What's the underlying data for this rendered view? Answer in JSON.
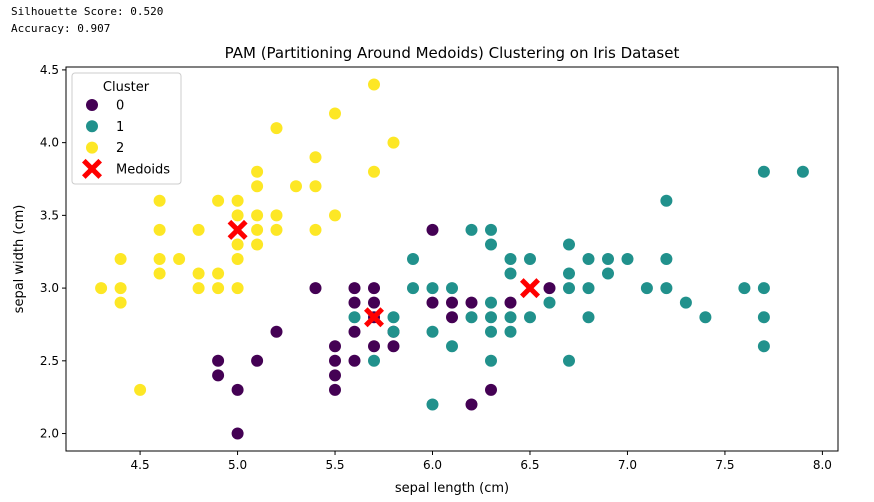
{
  "stats": {
    "silhouette": "Silhouette Score: 0.520",
    "accuracy": "Accuracy: 0.907"
  },
  "chart_data": {
    "type": "scatter",
    "title": "PAM (Partitioning Around Medoids) Clustering on Iris Dataset",
    "xlabel": "sepal length (cm)",
    "ylabel": "sepal width (cm)",
    "xlim": [
      4.12,
      8.08
    ],
    "ylim": [
      1.88,
      4.52
    ],
    "xticks": [
      4.5,
      5.0,
      5.5,
      6.0,
      6.5,
      7.0,
      7.5,
      8.0
    ],
    "xtick_labels": [
      "4.5",
      "5.0",
      "5.5",
      "6.0",
      "6.5",
      "7.0",
      "7.5",
      "8.0"
    ],
    "yticks": [
      2.0,
      2.5,
      3.0,
      3.5,
      4.0,
      4.5
    ],
    "ytick_labels": [
      "2.0",
      "2.5",
      "3.0",
      "3.5",
      "4.0",
      "4.5"
    ],
    "grid": false,
    "legend": {
      "title": "Cluster",
      "position": "upper-left",
      "entries": [
        {
          "label": "0",
          "color": "#440154",
          "marker": "circle"
        },
        {
          "label": "1",
          "color": "#21918c",
          "marker": "circle"
        },
        {
          "label": "2",
          "color": "#fde725",
          "marker": "circle"
        },
        {
          "label": "Medoids",
          "color": "#ff0000",
          "marker": "x"
        }
      ]
    },
    "series": [
      {
        "name": "0",
        "color": "#440154",
        "points": [
          [
            4.9,
            2.5
          ],
          [
            4.9,
            2.4
          ],
          [
            5.0,
            2.3
          ],
          [
            5.0,
            2.0
          ],
          [
            5.1,
            2.5
          ],
          [
            5.2,
            2.7
          ],
          [
            5.4,
            3.0
          ],
          [
            5.5,
            2.6
          ],
          [
            5.5,
            2.5
          ],
          [
            5.5,
            2.4
          ],
          [
            5.5,
            2.3
          ],
          [
            5.6,
            3.0
          ],
          [
            5.6,
            2.9
          ],
          [
            5.6,
            2.7
          ],
          [
            5.6,
            2.5
          ],
          [
            5.7,
            3.0
          ],
          [
            5.7,
            2.9
          ],
          [
            5.7,
            2.8
          ],
          [
            5.7,
            2.6
          ],
          [
            5.8,
            2.7
          ],
          [
            5.8,
            2.6
          ],
          [
            6.0,
            3.4
          ],
          [
            6.0,
            2.9
          ],
          [
            6.1,
            2.9
          ],
          [
            6.1,
            2.8
          ],
          [
            6.2,
            2.9
          ],
          [
            6.2,
            2.2
          ],
          [
            6.3,
            2.3
          ],
          [
            6.4,
            2.9
          ],
          [
            6.6,
            3.0
          ]
        ]
      },
      {
        "name": "1",
        "color": "#21918c",
        "points": [
          [
            5.6,
            2.8
          ],
          [
            5.7,
            2.5
          ],
          [
            5.8,
            2.8
          ],
          [
            5.8,
            2.7
          ],
          [
            5.9,
            3.2
          ],
          [
            5.9,
            3.0
          ],
          [
            6.0,
            3.0
          ],
          [
            6.0,
            2.7
          ],
          [
            6.0,
            2.2
          ],
          [
            6.1,
            3.0
          ],
          [
            6.1,
            2.6
          ],
          [
            6.2,
            3.4
          ],
          [
            6.2,
            2.8
          ],
          [
            6.3,
            3.4
          ],
          [
            6.3,
            3.3
          ],
          [
            6.3,
            2.9
          ],
          [
            6.3,
            2.8
          ],
          [
            6.3,
            2.7
          ],
          [
            6.3,
            2.5
          ],
          [
            6.4,
            3.2
          ],
          [
            6.4,
            3.1
          ],
          [
            6.4,
            2.8
          ],
          [
            6.4,
            2.7
          ],
          [
            6.5,
            3.2
          ],
          [
            6.5,
            2.8
          ],
          [
            6.6,
            2.9
          ],
          [
            6.7,
            3.3
          ],
          [
            6.7,
            3.1
          ],
          [
            6.7,
            3.0
          ],
          [
            6.7,
            2.5
          ],
          [
            6.8,
            3.2
          ],
          [
            6.8,
            3.0
          ],
          [
            6.8,
            2.8
          ],
          [
            6.9,
            3.2
          ],
          [
            6.9,
            3.1
          ],
          [
            7.0,
            3.2
          ],
          [
            7.1,
            3.0
          ],
          [
            7.2,
            3.6
          ],
          [
            7.2,
            3.2
          ],
          [
            7.2,
            3.0
          ],
          [
            7.3,
            2.9
          ],
          [
            7.4,
            2.8
          ],
          [
            7.6,
            3.0
          ],
          [
            7.7,
            3.8
          ],
          [
            7.7,
            3.0
          ],
          [
            7.7,
            2.8
          ],
          [
            7.7,
            2.6
          ],
          [
            7.9,
            3.8
          ]
        ]
      },
      {
        "name": "2",
        "color": "#fde725",
        "points": [
          [
            4.3,
            3.0
          ],
          [
            4.4,
            3.2
          ],
          [
            4.4,
            3.0
          ],
          [
            4.4,
            2.9
          ],
          [
            4.5,
            2.3
          ],
          [
            4.6,
            3.6
          ],
          [
            4.6,
            3.4
          ],
          [
            4.6,
            3.2
          ],
          [
            4.6,
            3.1
          ],
          [
            4.7,
            3.2
          ],
          [
            4.8,
            3.4
          ],
          [
            4.8,
            3.1
          ],
          [
            4.8,
            3.0
          ],
          [
            4.9,
            3.6
          ],
          [
            4.9,
            3.1
          ],
          [
            4.9,
            3.0
          ],
          [
            5.0,
            3.6
          ],
          [
            5.0,
            3.5
          ],
          [
            5.0,
            3.3
          ],
          [
            5.0,
            3.2
          ],
          [
            5.0,
            3.0
          ],
          [
            5.1,
            3.8
          ],
          [
            5.1,
            3.7
          ],
          [
            5.1,
            3.5
          ],
          [
            5.1,
            3.4
          ],
          [
            5.1,
            3.3
          ],
          [
            5.2,
            4.1
          ],
          [
            5.2,
            3.5
          ],
          [
            5.2,
            3.4
          ],
          [
            5.3,
            3.7
          ],
          [
            5.4,
            3.9
          ],
          [
            5.4,
            3.7
          ],
          [
            5.4,
            3.4
          ],
          [
            5.5,
            4.2
          ],
          [
            5.5,
            3.5
          ],
          [
            5.7,
            4.4
          ],
          [
            5.7,
            3.8
          ],
          [
            5.8,
            4.0
          ]
        ]
      }
    ],
    "medoids": {
      "name": "Medoids",
      "color": "#ff0000",
      "points": [
        [
          5.0,
          3.4
        ],
        [
          5.7,
          2.8
        ],
        [
          6.5,
          3.0
        ]
      ]
    }
  }
}
